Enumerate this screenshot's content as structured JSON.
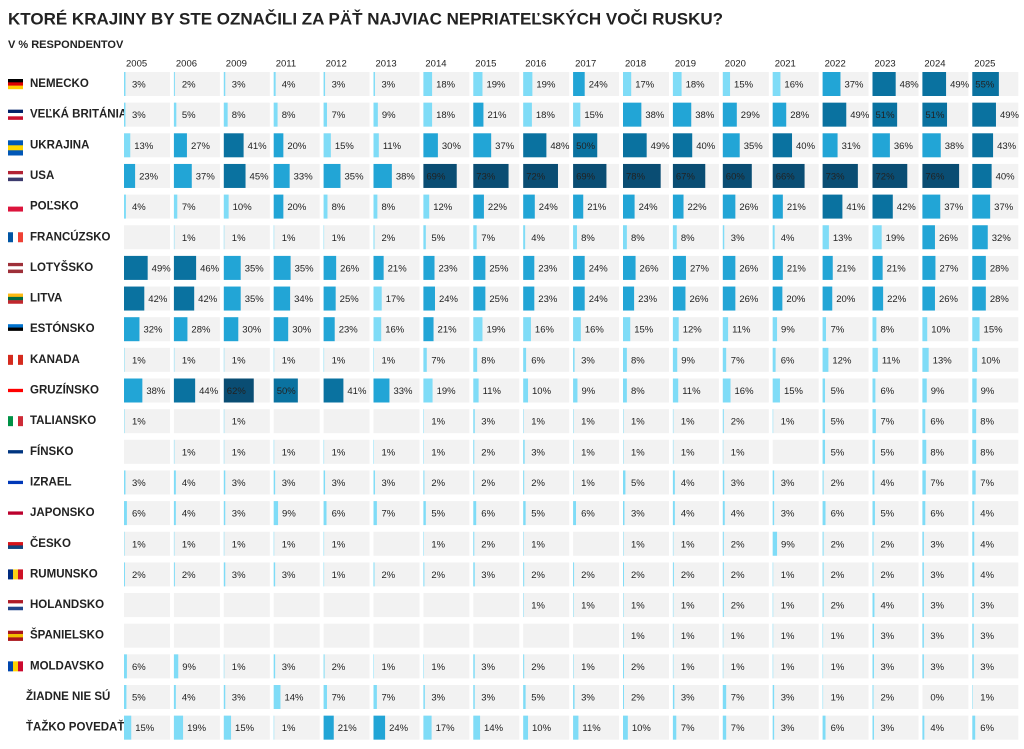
{
  "chart_data": {
    "type": "bar",
    "title": "KTORÉ KRAJINY BY STE OZNAČILI ZA PÄŤ NAJVIAC NEPRIATEĽSKÝCH VOČI RUSKU?",
    "subtitle": "V % RESPONDENTOV",
    "categories": [
      "2005",
      "2006",
      "2009",
      "2011",
      "2012",
      "2013",
      "2014",
      "2015",
      "2016",
      "2017",
      "2018",
      "2019",
      "2020",
      "2021",
      "2022",
      "2023",
      "2024",
      "2025"
    ],
    "colors": [
      "#7fdcf7",
      "#22a5d6",
      "#0a72a0",
      "#0a4d73"
    ],
    "series": [
      {
        "name": "NEMECKO",
        "values": [
          3,
          2,
          3,
          4,
          3,
          3,
          18,
          19,
          19,
          24,
          17,
          18,
          15,
          16,
          37,
          48,
          49,
          55
        ],
        "value_labels": [
          "3%",
          "2%",
          "3%",
          "4%",
          "3%",
          "3%",
          "18%",
          "19%",
          "19%",
          "24%",
          "17%",
          "18%",
          "15%",
          "16%",
          "37%",
          "48%",
          "49%",
          "55%"
        ]
      },
      {
        "name": "VEĽKÁ BRITÁNIA",
        "values": [
          3,
          5,
          8,
          8,
          7,
          9,
          18,
          21,
          18,
          15,
          38,
          38,
          29,
          28,
          49,
          51,
          51,
          49
        ],
        "value_labels": [
          "3%",
          "5%",
          "8%",
          "8%",
          "7%",
          "9%",
          "18%",
          "21%",
          "18%",
          "15%",
          "38%",
          "38%",
          "29%",
          "28%",
          "49%",
          "51%",
          "51%",
          "49%"
        ]
      },
      {
        "name": "UKRAJINA",
        "values": [
          13,
          27,
          41,
          20,
          15,
          11,
          30,
          37,
          48,
          50,
          49,
          40,
          35,
          40,
          31,
          36,
          38,
          43
        ],
        "value_labels": [
          "13%",
          "27%",
          "41%",
          "20%",
          "15%",
          "11%",
          "30%",
          "37%",
          "48%",
          "50%",
          "49%",
          "40%",
          "35%",
          "40%",
          "31%",
          "36%",
          "38%",
          "43%"
        ]
      },
      {
        "name": "USA",
        "values": [
          23,
          37,
          45,
          33,
          35,
          38,
          69,
          73,
          72,
          69,
          78,
          67,
          60,
          66,
          73,
          72,
          76,
          40
        ],
        "value_labels": [
          "23%",
          "37%",
          "45%",
          "33%",
          "35%",
          "38%",
          "69%",
          "73%",
          "72%",
          "69%",
          "78%",
          "67%",
          "60%",
          "66%",
          "73%",
          "72%",
          "76%",
          "40%"
        ]
      },
      {
        "name": "POĽSKO",
        "values": [
          4,
          7,
          10,
          20,
          8,
          8,
          12,
          22,
          24,
          21,
          24,
          22,
          26,
          21,
          41,
          42,
          37,
          37
        ],
        "value_labels": [
          "4%",
          "7%",
          "10%",
          "20%",
          "8%",
          "8%",
          "12%",
          "22%",
          "24%",
          "21%",
          "24%",
          "22%",
          "26%",
          "21%",
          "41%",
          "42%",
          "37%",
          "37%"
        ]
      },
      {
        "name": "FRANCÚZSKO",
        "values": [
          null,
          1,
          1,
          1,
          1,
          2,
          5,
          7,
          4,
          8,
          8,
          8,
          3,
          4,
          13,
          19,
          26,
          32
        ],
        "value_labels": [
          null,
          "1%",
          "1%",
          "1%",
          "1%",
          "2%",
          "5%",
          "7%",
          "4%",
          "8%",
          "8%",
          "8%",
          "3%",
          "4%",
          "13%",
          "19%",
          "26%",
          "32%"
        ]
      },
      {
        "name": "LOTYŠSKO",
        "values": [
          49,
          46,
          35,
          35,
          26,
          21,
          23,
          25,
          23,
          24,
          26,
          27,
          26,
          21,
          21,
          21,
          27,
          28
        ],
        "value_labels": [
          "49%",
          "46%",
          "35%",
          "35%",
          "26%",
          "21%",
          "23%",
          "25%",
          "23%",
          "24%",
          "26%",
          "27%",
          "26%",
          "21%",
          "21%",
          "21%",
          "27%",
          "28%"
        ]
      },
      {
        "name": "LITVA",
        "values": [
          42,
          42,
          35,
          34,
          25,
          17,
          24,
          25,
          23,
          24,
          23,
          26,
          26,
          20,
          20,
          22,
          26,
          28
        ],
        "value_labels": [
          "42%",
          "42%",
          "35%",
          "34%",
          "25%",
          "17%",
          "24%",
          "25%",
          "23%",
          "24%",
          "23%",
          "26%",
          "26%",
          "20%",
          "20%",
          "22%",
          "26%",
          "28%"
        ]
      },
      {
        "name": "ESTÓNSKO",
        "values": [
          32,
          28,
          30,
          30,
          23,
          16,
          21,
          19,
          16,
          16,
          15,
          12,
          11,
          9,
          7,
          8,
          10,
          15
        ],
        "value_labels": [
          "32%",
          "28%",
          "30%",
          "30%",
          "23%",
          "16%",
          "21%",
          "19%",
          "16%",
          "16%",
          "15%",
          "12%",
          "11%",
          "9%",
          "7%",
          "8%",
          "10%",
          "15%"
        ]
      },
      {
        "name": "KANADA",
        "values": [
          1,
          1,
          1,
          1,
          1,
          1,
          7,
          8,
          6,
          3,
          8,
          9,
          7,
          6,
          12,
          11,
          13,
          10
        ],
        "value_labels": [
          "1%",
          "1%",
          "1%",
          "1%",
          "1%",
          "1%",
          "7%",
          "8%",
          "6%",
          "3%",
          "8%",
          "9%",
          "7%",
          "6%",
          "12%",
          "11%",
          "13%",
          "10%"
        ]
      },
      {
        "name": "GRUZÍNSKO",
        "values": [
          38,
          44,
          62,
          50,
          41,
          33,
          19,
          11,
          10,
          9,
          8,
          11,
          16,
          15,
          5,
          6,
          9,
          9
        ],
        "value_labels": [
          "38%",
          "44%",
          "62%",
          "50%",
          "41%",
          "33%",
          "19%",
          "11%",
          "10%",
          "9%",
          "8%",
          "11%",
          "16%",
          "15%",
          "5%",
          "6%",
          "9%",
          "9%"
        ]
      },
      {
        "name": "TALIANSKO",
        "values": [
          1,
          null,
          1,
          null,
          null,
          null,
          1,
          3,
          1,
          1,
          1,
          1,
          2,
          1,
          5,
          7,
          6,
          8
        ],
        "value_labels": [
          "1%",
          null,
          "1%",
          null,
          null,
          null,
          "1%",
          "3%",
          "1%",
          "1%",
          "1%",
          "1%",
          "2%",
          "1%",
          "5%",
          "7%",
          "6%",
          "8%"
        ]
      },
      {
        "name": "FÍNSKO",
        "values": [
          null,
          1,
          1,
          1,
          1,
          1,
          1,
          2,
          3,
          1,
          1,
          1,
          1,
          null,
          5,
          5,
          8,
          8
        ],
        "value_labels": [
          null,
          "1%",
          "1%",
          "1%",
          "1%",
          "1%",
          "1%",
          "2%",
          "3%",
          "1%",
          "1%",
          "1%",
          "1%",
          null,
          "5%",
          "5%",
          "8%",
          "8%"
        ]
      },
      {
        "name": "IZRAEL",
        "values": [
          3,
          4,
          3,
          3,
          3,
          3,
          2,
          2,
          2,
          1,
          5,
          4,
          3,
          3,
          2,
          4,
          7,
          7
        ],
        "value_labels": [
          "3%",
          "4%",
          "3%",
          "3%",
          "3%",
          "3%",
          "2%",
          "2%",
          "2%",
          "1%",
          "5%",
          "4%",
          "3%",
          "3%",
          "2%",
          "4%",
          "7%",
          "7%"
        ]
      },
      {
        "name": "JAPONSKO",
        "values": [
          6,
          4,
          3,
          9,
          6,
          7,
          5,
          6,
          5,
          6,
          3,
          4,
          4,
          3,
          6,
          5,
          6,
          4
        ],
        "value_labels": [
          "6%",
          "4%",
          "3%",
          "9%",
          "6%",
          "7%",
          "5%",
          "6%",
          "5%",
          "6%",
          "3%",
          "4%",
          "4%",
          "3%",
          "6%",
          "5%",
          "6%",
          "4%"
        ]
      },
      {
        "name": "ČESKO",
        "values": [
          1,
          1,
          1,
          1,
          1,
          null,
          1,
          2,
          1,
          null,
          1,
          1,
          2,
          9,
          2,
          2,
          3,
          4
        ],
        "value_labels": [
          "1%",
          "1%",
          "1%",
          "1%",
          "1%",
          null,
          "1%",
          "2%",
          "1%",
          null,
          "1%",
          "1%",
          "2%",
          "9%",
          "2%",
          "2%",
          "3%",
          "4%"
        ]
      },
      {
        "name": "RUMUNSKO",
        "values": [
          2,
          2,
          3,
          3,
          1,
          2,
          2,
          3,
          2,
          2,
          2,
          2,
          2,
          1,
          2,
          2,
          3,
          4
        ],
        "value_labels": [
          "2%",
          "2%",
          "3%",
          "3%",
          "1%",
          "2%",
          "2%",
          "3%",
          "2%",
          "2%",
          "2%",
          "2%",
          "2%",
          "1%",
          "2%",
          "2%",
          "3%",
          "4%"
        ]
      },
      {
        "name": "HOLANDSKO",
        "values": [
          null,
          null,
          null,
          null,
          null,
          null,
          null,
          null,
          1,
          1,
          1,
          1,
          2,
          1,
          2,
          4,
          3,
          3
        ],
        "value_labels": [
          null,
          null,
          null,
          null,
          null,
          null,
          null,
          null,
          "1%",
          "1%",
          "1%",
          "1%",
          "2%",
          "1%",
          "2%",
          "4%",
          "3%",
          "3%"
        ]
      },
      {
        "name": "ŠPANIELSKO",
        "values": [
          null,
          null,
          null,
          null,
          null,
          null,
          null,
          null,
          null,
          null,
          1,
          1,
          1,
          1,
          1,
          3,
          3,
          3
        ],
        "value_labels": [
          null,
          null,
          null,
          null,
          null,
          null,
          null,
          null,
          null,
          null,
          "1%",
          "1%",
          "1%",
          "1%",
          "1%",
          "3%",
          "3%",
          "3%"
        ]
      },
      {
        "name": "MOLDAVSKO",
        "values": [
          6,
          9,
          1,
          3,
          2,
          1,
          1,
          3,
          2,
          1,
          2,
          1,
          1,
          1,
          1,
          3,
          3,
          3
        ],
        "value_labels": [
          "6%",
          "9%",
          "1%",
          "3%",
          "2%",
          "1%",
          "1%",
          "3%",
          "2%",
          "1%",
          "2%",
          "1%",
          "1%",
          "1%",
          "1%",
          "3%",
          "3%",
          "3%"
        ]
      },
      {
        "name": "ŽIADNE NIE SÚ",
        "values": [
          5,
          4,
          3,
          14,
          7,
          7,
          3,
          3,
          5,
          3,
          2,
          3,
          7,
          3,
          1,
          2,
          0,
          1
        ],
        "value_labels": [
          "5%",
          "4%",
          "3%",
          "14%",
          "7%",
          "7%",
          "3%",
          "3%",
          "5%",
          "3%",
          "2%",
          "3%",
          "7%",
          "3%",
          "1%",
          "2%",
          "0%",
          "1%"
        ]
      },
      {
        "name": "ŤAŽKO POVEDAŤ",
        "values": [
          15,
          19,
          15,
          1,
          21,
          24,
          17,
          14,
          10,
          11,
          10,
          7,
          7,
          3,
          6,
          3,
          4,
          6
        ],
        "value_labels": [
          "15%",
          "19%",
          "15%",
          "1%",
          "21%",
          "24%",
          "17%",
          "14%",
          "10%",
          "11%",
          "10%",
          "7%",
          "7%",
          "3%",
          "6%",
          "3%",
          "4%",
          "6%"
        ]
      }
    ]
  }
}
